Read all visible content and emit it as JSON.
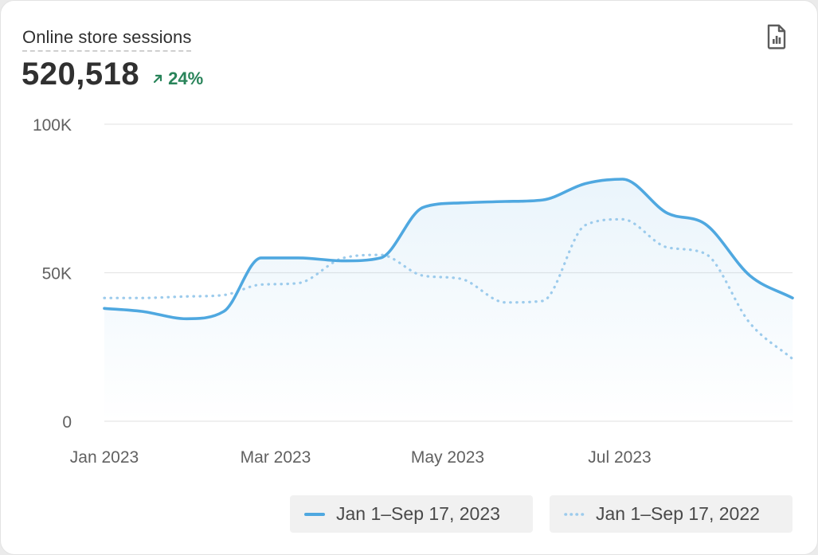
{
  "card": {
    "title": "Online store sessions",
    "value": "520,518",
    "delta": "24%",
    "delta_direction": "up",
    "delta_color": "#29845a",
    "report_icon": "report-document-icon"
  },
  "legend": [
    {
      "label": "Jan 1–Sep 17, 2023",
      "style": "solid",
      "color": "#4fa8e0"
    },
    {
      "label": "Jan 1–Sep 17, 2022",
      "style": "dotted",
      "color": "#9ccbec"
    }
  ],
  "chart_data": {
    "type": "line",
    "title": "Online store sessions",
    "xlabel": "",
    "ylabel": "",
    "x_tick_labels": [
      "Jan 2023",
      "Mar 2023",
      "May 2023",
      "Jul 2023"
    ],
    "y_tick_labels": [
      "0",
      "50K",
      "100K"
    ],
    "ylim": [
      0,
      100000
    ],
    "grid": true,
    "legend_position": "bottom-right",
    "series": [
      {
        "name": "Jan 1–Sep 17, 2023",
        "style": "solid",
        "color": "#4fa8e0",
        "fill": true,
        "x": [
          "2023-01-01",
          "2023-01-15",
          "2023-02-01",
          "2023-02-15",
          "2023-03-01",
          "2023-03-15",
          "2023-04-01",
          "2023-04-15",
          "2023-05-01",
          "2023-05-15",
          "2023-06-01",
          "2023-06-15",
          "2023-07-01",
          "2023-07-15",
          "2023-08-01",
          "2023-08-15",
          "2023-09-01",
          "2023-09-17"
        ],
        "values": [
          38000,
          37000,
          34500,
          37000,
          55000,
          55000,
          54000,
          55000,
          72000,
          73500,
          74000,
          74500,
          80000,
          81500,
          70000,
          66500,
          49000,
          41500
        ]
      },
      {
        "name": "Jan 1–Sep 17, 2022",
        "style": "dotted",
        "color": "#9ccbec",
        "fill": false,
        "x": [
          "2023-01-01",
          "2023-01-15",
          "2023-02-01",
          "2023-02-15",
          "2023-03-01",
          "2023-03-15",
          "2023-04-01",
          "2023-04-15",
          "2023-05-01",
          "2023-05-15",
          "2023-06-01",
          "2023-06-15",
          "2023-07-01",
          "2023-07-15",
          "2023-08-01",
          "2023-08-15",
          "2023-09-01",
          "2023-09-17"
        ],
        "values": [
          41500,
          41500,
          42000,
          42500,
          46000,
          46500,
          55000,
          56000,
          49000,
          48000,
          40000,
          40500,
          66000,
          68000,
          58500,
          56500,
          33000,
          21000
        ]
      }
    ]
  }
}
